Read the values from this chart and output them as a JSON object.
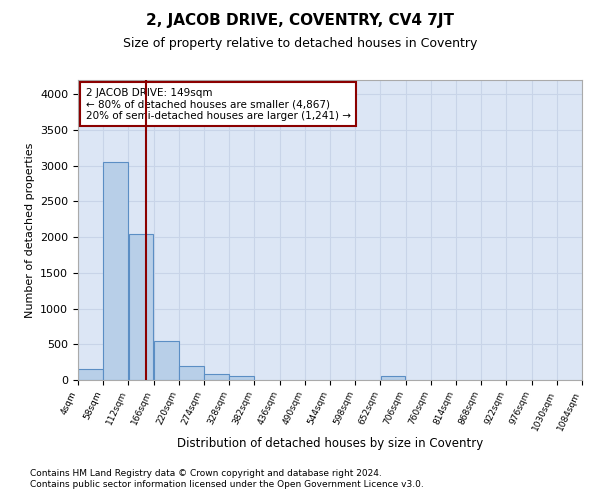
{
  "title": "2, JACOB DRIVE, COVENTRY, CV4 7JT",
  "subtitle": "Size of property relative to detached houses in Coventry",
  "xlabel": "Distribution of detached houses by size in Coventry",
  "ylabel": "Number of detached properties",
  "footnote1": "Contains HM Land Registry data © Crown copyright and database right 2024.",
  "footnote2": "Contains public sector information licensed under the Open Government Licence v3.0.",
  "annotation_line1": "2 JACOB DRIVE: 149sqm",
  "annotation_line2": "← 80% of detached houses are smaller (4,867)",
  "annotation_line3": "20% of semi-detached houses are larger (1,241) →",
  "property_size": 149,
  "bin_edges": [
    4,
    58,
    112,
    166,
    220,
    274,
    328,
    382,
    436,
    490,
    544,
    598,
    652,
    706,
    760,
    814,
    868,
    922,
    976,
    1030,
    1084
  ],
  "bar_heights": [
    150,
    3050,
    2050,
    550,
    200,
    80,
    50,
    0,
    0,
    0,
    0,
    0,
    50,
    0,
    0,
    0,
    0,
    0,
    0,
    0
  ],
  "bar_color": "#b8cfe8",
  "bar_edge_color": "#5b8ec4",
  "vline_color": "#8b0000",
  "vline_x": 149,
  "annotation_box_color": "#8b0000",
  "background_color": "#ffffff",
  "grid_color": "#c8d4e8",
  "ylim": [
    0,
    4200
  ],
  "yticks": [
    0,
    500,
    1000,
    1500,
    2000,
    2500,
    3000,
    3500,
    4000
  ],
  "ax_facecolor": "#dce6f5"
}
